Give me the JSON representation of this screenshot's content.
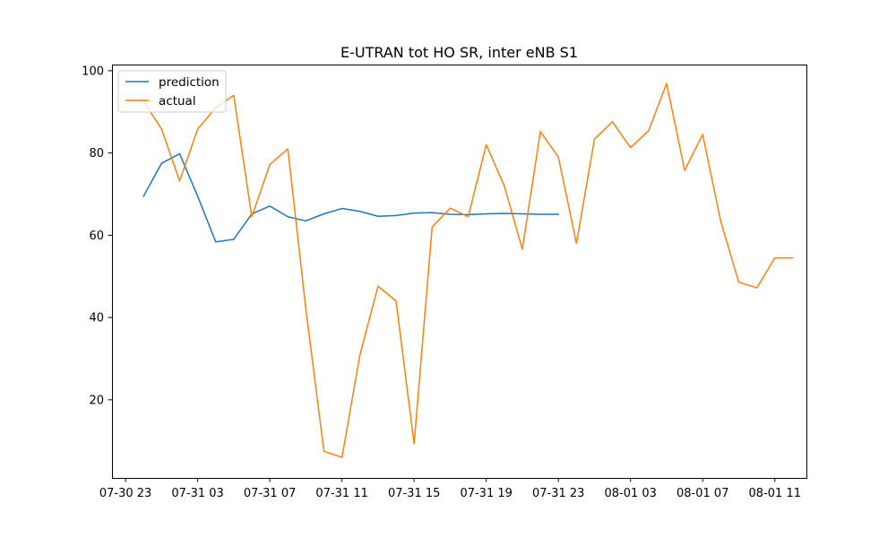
{
  "chart_data": {
    "type": "line",
    "title": "E-UTRAN tot HO SR, inter eNB S1",
    "xlabel": "",
    "ylabel": "",
    "x_tick_labels": [
      "07-30 23",
      "07-31 03",
      "07-31 07",
      "07-31 11",
      "07-31 15",
      "07-31 19",
      "07-31 23",
      "08-01 03",
      "08-01 07",
      "08-01 11"
    ],
    "y_ticks": [
      20,
      40,
      60,
      80,
      100
    ],
    "ylim": [
      1,
      101.5
    ],
    "xlim_hours_from_first_tick": [
      -0.75,
      37.75
    ],
    "grid": false,
    "legend_position": "top-left",
    "series": [
      {
        "name": "prediction",
        "color": "#1f77b4",
        "x_hours": [
          1,
          2,
          3,
          4,
          5,
          6,
          7,
          8,
          9,
          10,
          11,
          12,
          13,
          14,
          15,
          16,
          17,
          18,
          19,
          20,
          21,
          22,
          23,
          24
        ],
        "values": [
          69.5,
          77.5,
          79.8,
          69.5,
          58.4,
          59.0,
          65.2,
          67.1,
          64.5,
          63.5,
          65.2,
          66.5,
          65.8,
          64.6,
          64.8,
          65.4,
          65.5,
          65.1,
          65.0,
          65.2,
          65.3,
          65.2,
          65.1,
          65.1
        ]
      },
      {
        "name": "actual",
        "color": "#ff7f0e",
        "x_hours": [
          1,
          2,
          3,
          4,
          5,
          6,
          7,
          8,
          9,
          10,
          11,
          12,
          13,
          14,
          15,
          16,
          17,
          18,
          19,
          20,
          21,
          22,
          23,
          24,
          25,
          26,
          27,
          28,
          29,
          30,
          31,
          32,
          33,
          34,
          35,
          36,
          37
        ],
        "values": [
          92.5,
          85.8,
          73.2,
          85.8,
          91.0,
          94.0,
          64.5,
          77.2,
          81.0,
          42.0,
          7.5,
          6.0,
          31.0,
          47.6,
          44.0,
          9.3,
          62.0,
          66.6,
          64.5,
          82.0,
          72.0,
          56.6,
          85.2,
          79.0,
          58.0,
          83.4,
          87.6,
          81.3,
          85.4,
          96.9,
          75.8,
          84.5,
          63.4,
          48.6,
          47.2,
          54.5,
          54.5
        ]
      }
    ]
  }
}
